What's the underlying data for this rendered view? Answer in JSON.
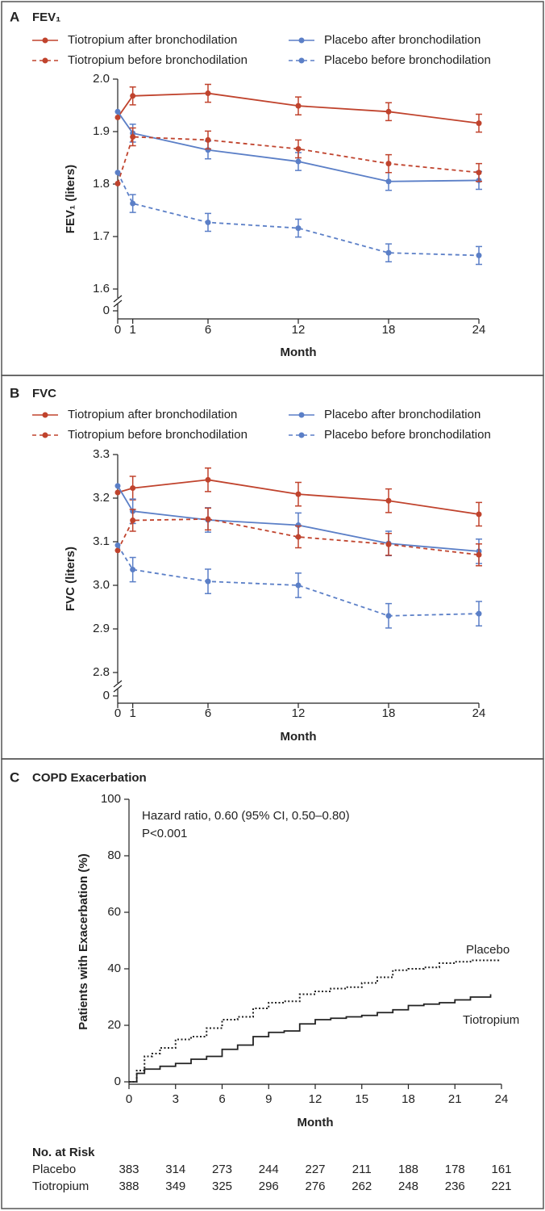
{
  "chart_data": [
    {
      "type": "line",
      "panel": "A",
      "title": "FEV₁",
      "ylabel": "FEV₁ (liters)",
      "xlabel": "Month",
      "x": [
        0,
        1,
        6,
        12,
        18,
        24
      ],
      "xlim": [
        0,
        24
      ],
      "xticks": [
        0,
        1,
        6,
        12,
        18,
        24
      ],
      "ylim": [
        1.6,
        2.0
      ],
      "yticks": [
        0,
        1.6,
        1.7,
        1.8,
        1.9,
        {
          "value": 2.0,
          "label": "2.0"
        }
      ],
      "series": [
        {
          "name": "Tiotropium after bronchodilation",
          "color": "#c0432d",
          "dash": "solid",
          "values": [
            1.927,
            1.968,
            1.973,
            1.949,
            1.938,
            1.916
          ],
          "errors": [
            null,
            0.017,
            0.017,
            0.017,
            0.017,
            0.017
          ]
        },
        {
          "name": "Placebo after bronchodilation",
          "color": "#5b7fc7",
          "dash": "solid",
          "values": [
            1.938,
            1.897,
            1.865,
            1.843,
            1.805,
            1.807
          ],
          "errors": [
            null,
            0.017,
            0.017,
            0.017,
            0.017,
            0.017
          ]
        },
        {
          "name": "Tiotropium before bronchodilation",
          "color": "#c0432d",
          "dash": "dashed",
          "values": [
            1.801,
            1.89,
            1.884,
            1.867,
            1.839,
            1.822
          ],
          "errors": [
            null,
            0.017,
            0.017,
            0.017,
            0.017,
            0.017
          ]
        },
        {
          "name": "Placebo before bronchodilation",
          "color": "#5b7fc7",
          "dash": "dashed",
          "values": [
            1.822,
            1.763,
            1.727,
            1.716,
            1.669,
            1.664
          ],
          "errors": [
            null,
            0.017,
            0.017,
            0.017,
            0.017,
            0.017
          ]
        }
      ]
    },
    {
      "type": "line",
      "panel": "B",
      "title": "FVC",
      "ylabel": "FVC (liters)",
      "xlabel": "Month",
      "x": [
        0,
        1,
        6,
        12,
        18,
        24
      ],
      "xlim": [
        0,
        24
      ],
      "xticks": [
        0,
        1,
        6,
        12,
        18,
        24
      ],
      "ylim": [
        2.8,
        3.3
      ],
      "yticks": [
        0,
        2.8,
        2.9,
        {
          "value": 3.0,
          "label": "3.0"
        },
        3.1,
        3.2,
        3.3
      ],
      "series": [
        {
          "name": "Tiotropium after bronchodilation",
          "color": "#c0432d",
          "dash": "solid",
          "values": [
            3.213,
            3.223,
            3.242,
            3.209,
            3.194,
            3.163
          ],
          "errors": [
            null,
            0.027,
            0.027,
            0.027,
            0.027,
            0.027
          ]
        },
        {
          "name": "Placebo after bronchodilation",
          "color": "#5b7fc7",
          "dash": "solid",
          "values": [
            3.228,
            3.17,
            3.15,
            3.138,
            3.096,
            3.078
          ],
          "errors": [
            null,
            0.028,
            0.028,
            0.028,
            0.028,
            0.028
          ]
        },
        {
          "name": "Tiotropium before bronchodilation",
          "color": "#c0432d",
          "dash": "dashed",
          "values": [
            3.08,
            3.149,
            3.152,
            3.111,
            3.094,
            3.07
          ],
          "errors": [
            null,
            0.025,
            0.025,
            0.025,
            0.025,
            0.025
          ]
        },
        {
          "name": "Placebo before bronchodilation",
          "color": "#5b7fc7",
          "dash": "dashed",
          "values": [
            3.092,
            3.036,
            3.009,
            3.0,
            2.93,
            2.935
          ],
          "errors": [
            null,
            0.028,
            0.028,
            0.028,
            0.028,
            0.028
          ]
        }
      ]
    },
    {
      "type": "step",
      "panel": "C",
      "title": "COPD Exacerbation",
      "ylabel": "Patients with Exacerbation (%)",
      "xlabel": "Month",
      "xlim": [
        0,
        24
      ],
      "xticks": [
        0,
        3,
        6,
        9,
        12,
        15,
        18,
        21,
        24
      ],
      "ylim": [
        0,
        100
      ],
      "yticks": [
        0,
        20,
        40,
        60,
        80,
        100
      ],
      "annotations": [
        "Hazard ratio, 0.60 (95% CI, 0.50–0.80)",
        "P<0.001"
      ],
      "series": [
        {
          "name": "Placebo",
          "color": "#222222",
          "dash": "dotted",
          "x": [
            0,
            0.5,
            1,
            1.5,
            2,
            3,
            4,
            5,
            6,
            7,
            8,
            9,
            10,
            11,
            12,
            13,
            14,
            15,
            16,
            17,
            18,
            19,
            20,
            21,
            22,
            23.8
          ],
          "values": [
            0,
            4,
            9,
            10,
            12,
            15,
            16,
            19,
            22,
            23,
            26,
            28,
            28.5,
            31,
            32,
            33,
            33.5,
            35,
            37,
            39.5,
            40,
            40.5,
            42,
            42.5,
            43,
            43.5
          ]
        },
        {
          "name": "Tiotropium",
          "color": "#222222",
          "dash": "solid",
          "x": [
            0,
            0.5,
            1,
            2,
            3,
            4,
            5,
            6,
            7,
            8,
            9,
            10,
            11,
            12,
            13,
            14,
            15,
            16,
            17,
            18,
            19,
            20,
            21,
            22,
            23.3
          ],
          "values": [
            0,
            3,
            4.5,
            5.5,
            6.5,
            8,
            9,
            11.5,
            13,
            16,
            17.5,
            18,
            20.5,
            22,
            22.5,
            23,
            23.5,
            24.5,
            25.5,
            27,
            27.5,
            28,
            29,
            30,
            31
          ]
        }
      ],
      "risk_table": {
        "title": "No. at Risk",
        "rows": [
          {
            "label": "Placebo",
            "values": [
              383,
              314,
              273,
              244,
              227,
              211,
              188,
              178,
              161
            ]
          },
          {
            "label": "Tiotropium",
            "values": [
              388,
              349,
              325,
              296,
              276,
              262,
              248,
              236,
              221
            ]
          }
        ]
      }
    }
  ]
}
